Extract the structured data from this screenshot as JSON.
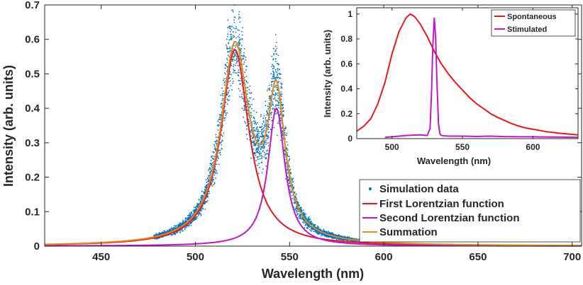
{
  "chart_data": [
    {
      "type": "line",
      "xlabel": "Wavelength (nm)",
      "ylabel": "Intensity (arb. units)",
      "xlim": [
        420,
        705
      ],
      "ylim": [
        0,
        0.7
      ],
      "xticks": [
        "450",
        "500",
        "550",
        "600",
        "650",
        "700"
      ],
      "yticks": [
        "0",
        "0.1",
        "0.2",
        "0.3",
        "0.4",
        "0.5",
        "0.6",
        "0.7"
      ],
      "grid": false,
      "legend": "bottom-right",
      "series": [
        {
          "name": "Simulation data",
          "kind": "scatter",
          "color": "#0072BD",
          "noisy_profile_of": "Summation",
          "x_range": [
            478,
            592
          ],
          "spread": 0.35,
          "points": 3500
        },
        {
          "name": "First Lorentzian function",
          "color": "#E8191C",
          "center": 521,
          "hwhm": 9,
          "peak": 0.57
        },
        {
          "name": "Second Lorentzian function",
          "color": "#C217C9",
          "center": 543,
          "hwhm": 5.5,
          "peak": 0.4
        },
        {
          "name": "Summation",
          "color": "#E08A1E",
          "sum_of": [
            "First Lorentzian function",
            "Second Lorentzian function"
          ]
        }
      ]
    },
    {
      "type": "line",
      "xlabel": "Wavelength (nm)",
      "ylabel": "Intensity (arb. units)",
      "xlim": [
        475,
        632
      ],
      "ylim": [
        0,
        1.05
      ],
      "xticks": [
        "500",
        "550",
        "600"
      ],
      "yticks": [
        "0",
        "0.2",
        "0.4",
        "0.6",
        "0.8",
        "1"
      ],
      "grid": false,
      "legend": "top-right",
      "series": [
        {
          "name": "Spontaneous",
          "color": "#E8191C",
          "x": [
            475,
            480,
            485,
            490,
            495,
            500,
            505,
            510,
            513,
            516,
            520,
            525,
            530,
            535,
            540,
            545,
            550,
            555,
            560,
            565,
            570,
            575,
            580,
            585,
            590,
            595,
            600,
            605,
            610,
            615,
            620,
            625,
            632
          ],
          "y": [
            0.06,
            0.1,
            0.16,
            0.28,
            0.45,
            0.68,
            0.86,
            0.97,
            1.0,
            0.98,
            0.92,
            0.82,
            0.7,
            0.6,
            0.52,
            0.45,
            0.39,
            0.33,
            0.28,
            0.24,
            0.2,
            0.17,
            0.145,
            0.12,
            0.1,
            0.085,
            0.075,
            0.065,
            0.055,
            0.048,
            0.042,
            0.037,
            0.03
          ]
        },
        {
          "name": "Stimulated",
          "color": "#C217C9",
          "x": [
            495,
            500,
            505,
            510,
            515,
            520,
            525,
            527,
            528,
            529,
            530,
            531,
            532,
            533,
            534,
            535,
            540,
            550,
            560,
            570,
            580,
            590,
            600,
            610,
            620,
            632
          ],
          "y": [
            0.01,
            0.015,
            0.02,
            0.025,
            0.028,
            0.03,
            0.025,
            0.08,
            0.35,
            0.75,
            0.97,
            0.8,
            0.42,
            0.12,
            0.04,
            0.025,
            0.02,
            0.02,
            0.018,
            0.02,
            0.016,
            0.015,
            0.015,
            0.013,
            0.012,
            0.01
          ]
        }
      ]
    }
  ]
}
